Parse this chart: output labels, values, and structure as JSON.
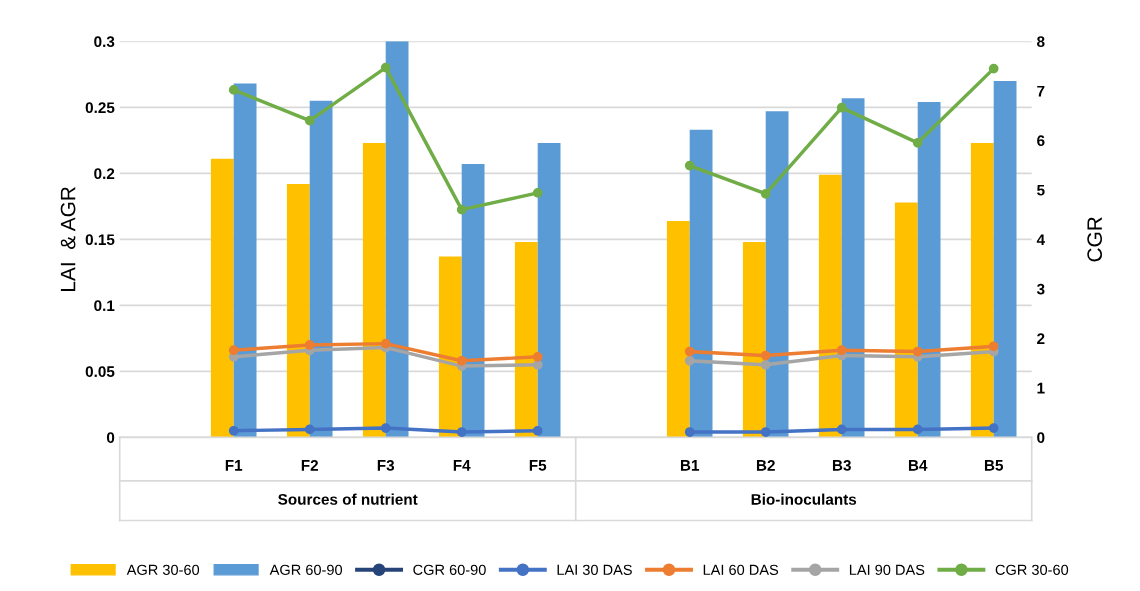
{
  "chart_data": {
    "type": "bar",
    "ylabel": "LAI  & AGR",
    "y2label": "CGR",
    "categories": [
      null,
      "F1",
      "F2",
      "F3",
      "F4",
      "F5",
      null,
      "B1",
      "B2",
      "B3",
      "B4",
      "B5"
    ],
    "series": [
      {
        "name": "AGR 30-60",
        "color": "#ffc000",
        "values": [
          null,
          0.211,
          0.192,
          0.223,
          0.137,
          0.148,
          null,
          0.164,
          0.148,
          0.199,
          0.178,
          0.223
        ]
      },
      {
        "name": "AGR 60-90",
        "color": "#5b9bd5",
        "values": [
          null,
          0.268,
          0.255,
          0.3,
          0.207,
          0.223,
          null,
          0.233,
          0.247,
          0.257,
          0.254,
          0.27
        ]
      },
      {
        "name": "CGR 60-90",
        "type": "line",
        "axis": "y2",
        "color": "#264478",
        "values": [
          null,
          null,
          null,
          null,
          null,
          null,
          null,
          null,
          null,
          null,
          null,
          null
        ]
      },
      {
        "name": "LAI 30 DAS",
        "type": "line",
        "color": "#4472c4",
        "values": [
          null,
          0.005,
          0.006,
          0.007,
          0.004,
          0.005,
          null,
          0.004,
          0.004,
          0.006,
          0.006,
          0.007
        ]
      },
      {
        "name": "LAI 60 DAS",
        "type": "line",
        "color": "#ed7d31",
        "values": [
          null,
          0.066,
          0.07,
          0.071,
          0.058,
          0.061,
          null,
          0.065,
          0.062,
          0.066,
          0.065,
          0.069
        ]
      },
      {
        "name": "LAI 90 DAS",
        "type": "line",
        "color": "#a5a5a5",
        "values": [
          null,
          0.061,
          0.066,
          0.068,
          0.054,
          0.055,
          null,
          0.058,
          0.055,
          0.062,
          0.061,
          0.065
        ]
      },
      {
        "name": "CGR 30-60",
        "type": "line",
        "axis": "y2",
        "color": "#70ad47",
        "values": [
          null,
          7.02,
          6.4,
          7.47,
          4.6,
          4.94,
          null,
          5.49,
          4.92,
          6.66,
          5.95,
          7.45
        ]
      }
    ],
    "ylim": [
      0,
      0.3
    ],
    "yticks": [
      0,
      0.05,
      0.1,
      0.15,
      0.2,
      0.25,
      0.3
    ],
    "y2lim": [
      0,
      8
    ],
    "y2ticks": [
      0,
      1,
      2,
      3,
      4,
      5,
      6,
      7,
      8
    ],
    "annotations": [
      "Sources of nutrient",
      "Bio-inoculants"
    ],
    "grid": "y",
    "legend": "bottom",
    "marker": "circle"
  }
}
